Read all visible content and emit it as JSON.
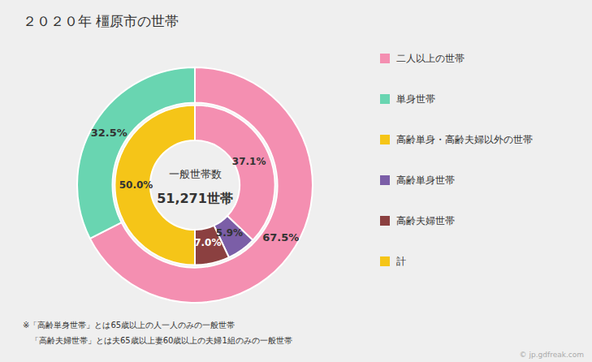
{
  "chart_data": {
    "type": "pie",
    "title": "２０２０年 橿原市の世帯",
    "center_label": [
      "一般世帯数",
      "51,271世帯"
    ],
    "series": [
      {
        "values": [
          67.5,
          32.5
        ],
        "value_labels": [
          "67.5%",
          "32.5%"
        ],
        "colors": [
          "#F48FB1",
          "#69D5B1"
        ]
      },
      {
        "values": [
          37.1,
          5.9,
          7.0,
          50.0
        ],
        "value_labels": [
          "37.1%",
          "5.9%",
          "7.0%",
          "50.0%"
        ],
        "colors": [
          "#F48FB1",
          "#7B5EA7",
          "#8B4040",
          "#F5C518"
        ]
      }
    ],
    "data_labels": true,
    "legend": "right",
    "legend_entries": [
      {
        "label": "二人以上の世帯",
        "color": "#F48FB1"
      },
      {
        "label": "単身世帯",
        "color": "#69D5B1"
      },
      {
        "label": "高齢単身・高齢夫婦以外の世帯",
        "color": "#F5C518"
      },
      {
        "label": "高齢単身世帯",
        "color": "#7B5EA7"
      },
      {
        "label": "高齢夫婦世帯",
        "color": "#8B4040"
      },
      {
        "label": "計",
        "color": "#F5C518"
      }
    ],
    "footnotes": [
      "※「高齢単身世帯」とは65歳以上の人一人のみの一般世帯",
      "　「高齢夫婦世帯」とは夫65歳以上妻60歳以上の夫婦1組のみの一般世帯"
    ],
    "watermark": "© jp.gdfreak.com",
    "background": "#EFEFEF"
  }
}
